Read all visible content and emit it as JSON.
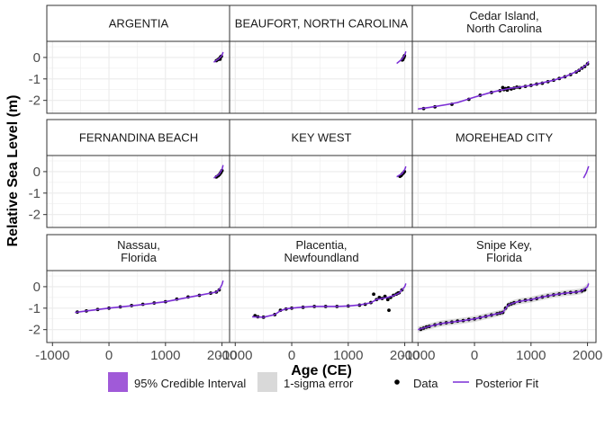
{
  "chart_data": {
    "type": "line",
    "layout": "facet-grid-3x3",
    "ylabel": "Relative Sea Level (m)",
    "xlabel": "Age (CE)",
    "xlim": [
      -1100,
      2150
    ],
    "ylim": [
      -2.6,
      0.75
    ],
    "x_ticks": [
      -1000,
      0,
      1000,
      2000
    ],
    "x_tick_labels": [
      "-1000",
      "0",
      "1000",
      "2000"
    ],
    "y_ticks": [
      0,
      -1,
      -2
    ],
    "y_tick_labels": [
      "0",
      "-1",
      "-2"
    ],
    "grid": true,
    "legend_position": "bottom",
    "legend": {
      "ci_label": "95% Credible Interval",
      "sigma_label": "1-sigma error",
      "data_label": "Data",
      "fit_label": "Posterior Fit"
    },
    "colors": {
      "ci": "#a05ad8",
      "sigma": "#d9d9d9",
      "fit": "#7b2fd6",
      "data": "#000000",
      "strip_bg": "#ffffff",
      "panel_border": "#333333",
      "grid": "#ebebeb"
    },
    "panels": [
      {
        "title": [
          "ARGENTIA"
        ],
        "fit": [
          [
            1855,
            -0.22
          ],
          [
            1950,
            -0.05
          ],
          [
            2000,
            0.1
          ],
          [
            2020,
            0.25
          ]
        ],
        "data": [
          [
            1900,
            -0.15
          ],
          [
            1930,
            -0.1
          ],
          [
            1955,
            -0.05
          ],
          [
            1975,
            0.02
          ],
          [
            1990,
            0.06
          ],
          [
            1965,
            -0.08
          ]
        ],
        "data_bars": false
      },
      {
        "title": [
          "BEAUFORT, NORTH CAROLINA"
        ],
        "fit": [
          [
            1858,
            -0.28
          ],
          [
            1950,
            -0.08
          ],
          [
            2000,
            0.12
          ],
          [
            2020,
            0.28
          ]
        ],
        "data": [
          [
            1955,
            -0.12
          ],
          [
            1970,
            -0.05
          ],
          [
            1985,
            0.0
          ],
          [
            1995,
            0.08
          ],
          [
            1965,
            -0.1
          ]
        ],
        "data_bars": false
      },
      {
        "title": [
          "Cedar Island,",
          "North Carolina"
        ],
        "fit": [
          [
            -1000,
            -2.4
          ],
          [
            -800,
            -2.33
          ],
          [
            -500,
            -2.2
          ],
          [
            -300,
            -2.1
          ],
          [
            0,
            -1.85
          ],
          [
            300,
            -1.62
          ],
          [
            600,
            -1.45
          ],
          [
            800,
            -1.38
          ],
          [
            1000,
            -1.3
          ],
          [
            1200,
            -1.18
          ],
          [
            1400,
            -1.06
          ],
          [
            1600,
            -0.9
          ],
          [
            1800,
            -0.66
          ],
          [
            1900,
            -0.5
          ],
          [
            2000,
            -0.3
          ],
          [
            2020,
            -0.18
          ]
        ],
        "data": [
          [
            -900,
            -2.38
          ],
          [
            -700,
            -2.3
          ],
          [
            -400,
            -2.18
          ],
          [
            -100,
            -1.95
          ],
          [
            100,
            -1.76
          ],
          [
            300,
            -1.63
          ],
          [
            450,
            -1.55
          ],
          [
            500,
            -1.4
          ],
          [
            520,
            -1.5
          ],
          [
            550,
            -1.45
          ],
          [
            580,
            -1.52
          ],
          [
            600,
            -1.42
          ],
          [
            650,
            -1.47
          ],
          [
            700,
            -1.43
          ],
          [
            750,
            -1.38
          ],
          [
            800,
            -1.4
          ],
          [
            900,
            -1.35
          ],
          [
            1000,
            -1.3
          ],
          [
            1100,
            -1.24
          ],
          [
            1200,
            -1.2
          ],
          [
            1300,
            -1.13
          ],
          [
            1400,
            -1.06
          ],
          [
            1500,
            -0.98
          ],
          [
            1600,
            -0.9
          ],
          [
            1700,
            -0.8
          ],
          [
            1800,
            -0.68
          ],
          [
            1850,
            -0.6
          ],
          [
            1900,
            -0.5
          ],
          [
            1950,
            -0.42
          ],
          [
            2000,
            -0.3
          ]
        ],
        "data_bars": false
      },
      {
        "title": [
          "FERNANDINA BEACH"
        ],
        "fit": [
          [
            1855,
            -0.3
          ],
          [
            1950,
            -0.12
          ],
          [
            2000,
            0.1
          ],
          [
            2020,
            0.3
          ]
        ],
        "data": [
          [
            1900,
            -0.25
          ],
          [
            1930,
            -0.2
          ],
          [
            1950,
            -0.15
          ],
          [
            1970,
            -0.08
          ],
          [
            1985,
            -0.02
          ],
          [
            2000,
            0.05
          ]
        ],
        "data_bars": false
      },
      {
        "title": [
          "KEY WEST"
        ],
        "fit": [
          [
            1858,
            -0.24
          ],
          [
            1950,
            -0.1
          ],
          [
            2000,
            0.1
          ],
          [
            2020,
            0.24
          ]
        ],
        "data": [
          [
            1915,
            -0.22
          ],
          [
            1935,
            -0.18
          ],
          [
            1955,
            -0.12
          ],
          [
            1975,
            -0.06
          ],
          [
            1995,
            0.0
          ]
        ],
        "data_bars": false
      },
      {
        "title": [
          "MOREHEAD CITY"
        ],
        "fit": [
          [
            1930,
            -0.3
          ],
          [
            1980,
            -0.05
          ],
          [
            2020,
            0.25
          ]
        ],
        "data": [],
        "data_bars": false
      },
      {
        "title": [
          "Nassau,",
          "Florida"
        ],
        "fit": [
          [
            -600,
            -1.2
          ],
          [
            -400,
            -1.13
          ],
          [
            0,
            -1.0
          ],
          [
            500,
            -0.86
          ],
          [
            1000,
            -0.7
          ],
          [
            1500,
            -0.45
          ],
          [
            1800,
            -0.3
          ],
          [
            1900,
            -0.25
          ],
          [
            1960,
            -0.1
          ],
          [
            2000,
            0.1
          ],
          [
            2020,
            0.28
          ]
        ],
        "data": [
          [
            -560,
            -1.18
          ],
          [
            -400,
            -1.13
          ],
          [
            -200,
            -1.06
          ],
          [
            0,
            -1.0
          ],
          [
            200,
            -0.94
          ],
          [
            400,
            -0.88
          ],
          [
            600,
            -0.82
          ],
          [
            800,
            -0.76
          ],
          [
            1000,
            -0.7
          ],
          [
            1200,
            -0.58
          ],
          [
            1400,
            -0.48
          ],
          [
            1600,
            -0.4
          ],
          [
            1800,
            -0.3
          ],
          [
            1900,
            -0.25
          ],
          [
            1950,
            -0.15
          ]
        ],
        "data_bars": false
      },
      {
        "title": [
          "Placentia,",
          "Newfoundland"
        ],
        "fit": [
          [
            -700,
            -1.4
          ],
          [
            -500,
            -1.42
          ],
          [
            -300,
            -1.3
          ],
          [
            -200,
            -1.12
          ],
          [
            -100,
            -1.03
          ],
          [
            0,
            -1.0
          ],
          [
            200,
            -0.95
          ],
          [
            400,
            -0.92
          ],
          [
            600,
            -0.92
          ],
          [
            800,
            -0.92
          ],
          [
            1000,
            -0.9
          ],
          [
            1200,
            -0.85
          ],
          [
            1400,
            -0.75
          ],
          [
            1500,
            -0.6
          ],
          [
            1600,
            -0.55
          ],
          [
            1700,
            -0.5
          ],
          [
            1800,
            -0.42
          ],
          [
            1900,
            -0.3
          ],
          [
            2000,
            0.0
          ],
          [
            2020,
            0.15
          ]
        ],
        "data": [
          [
            -650,
            -1.35
          ],
          [
            -600,
            -1.4
          ],
          [
            -500,
            -1.42
          ],
          [
            -300,
            -1.3
          ],
          [
            -200,
            -1.1
          ],
          [
            -100,
            -1.04
          ],
          [
            0,
            -1.0
          ],
          [
            200,
            -0.96
          ],
          [
            400,
            -0.92
          ],
          [
            600,
            -0.92
          ],
          [
            800,
            -0.92
          ],
          [
            1000,
            -0.9
          ],
          [
            1200,
            -0.86
          ],
          [
            1300,
            -0.82
          ],
          [
            1400,
            -0.74
          ],
          [
            1450,
            -0.35
          ],
          [
            1500,
            -0.6
          ],
          [
            1550,
            -0.5
          ],
          [
            1600,
            -0.55
          ],
          [
            1650,
            -0.45
          ],
          [
            1700,
            -0.6
          ],
          [
            1720,
            -1.1
          ],
          [
            1750,
            -0.5
          ],
          [
            1800,
            -0.4
          ],
          [
            1850,
            -0.35
          ],
          [
            1880,
            -0.3
          ],
          [
            1900,
            -0.28
          ],
          [
            1950,
            -0.15
          ]
        ],
        "data_bars": false
      },
      {
        "title": [
          "Snipe Key,",
          "Florida"
        ],
        "fit": [
          [
            -1000,
            -2.0
          ],
          [
            -800,
            -1.85
          ],
          [
            -600,
            -1.72
          ],
          [
            -400,
            -1.65
          ],
          [
            -200,
            -1.58
          ],
          [
            0,
            -1.5
          ],
          [
            200,
            -1.38
          ],
          [
            400,
            -1.26
          ],
          [
            500,
            -1.2
          ],
          [
            600,
            -0.85
          ],
          [
            700,
            -0.75
          ],
          [
            800,
            -0.68
          ],
          [
            1000,
            -0.6
          ],
          [
            1200,
            -0.48
          ],
          [
            1400,
            -0.38
          ],
          [
            1600,
            -0.3
          ],
          [
            1800,
            -0.25
          ],
          [
            1900,
            -0.2
          ],
          [
            2000,
            0.0
          ],
          [
            2020,
            0.15
          ]
        ],
        "data": [
          [
            -950,
            -1.98
          ],
          [
            -900,
            -1.93
          ],
          [
            -850,
            -1.88
          ],
          [
            -800,
            -1.85
          ],
          [
            -700,
            -1.78
          ],
          [
            -600,
            -1.72
          ],
          [
            -500,
            -1.68
          ],
          [
            -400,
            -1.65
          ],
          [
            -300,
            -1.6
          ],
          [
            -200,
            -1.58
          ],
          [
            -100,
            -1.53
          ],
          [
            0,
            -1.5
          ],
          [
            100,
            -1.44
          ],
          [
            200,
            -1.38
          ],
          [
            300,
            -1.32
          ],
          [
            400,
            -1.26
          ],
          [
            450,
            -1.23
          ],
          [
            500,
            -1.2
          ],
          [
            550,
            -1.0
          ],
          [
            600,
            -0.85
          ],
          [
            650,
            -0.8
          ],
          [
            700,
            -0.75
          ],
          [
            800,
            -0.68
          ],
          [
            900,
            -0.63
          ],
          [
            1000,
            -0.6
          ],
          [
            1100,
            -0.55
          ],
          [
            1200,
            -0.48
          ],
          [
            1300,
            -0.43
          ],
          [
            1400,
            -0.38
          ],
          [
            1500,
            -0.34
          ],
          [
            1600,
            -0.3
          ],
          [
            1700,
            -0.27
          ],
          [
            1800,
            -0.25
          ],
          [
            1900,
            -0.2
          ],
          [
            1950,
            -0.15
          ]
        ],
        "data_bars": true
      }
    ]
  }
}
